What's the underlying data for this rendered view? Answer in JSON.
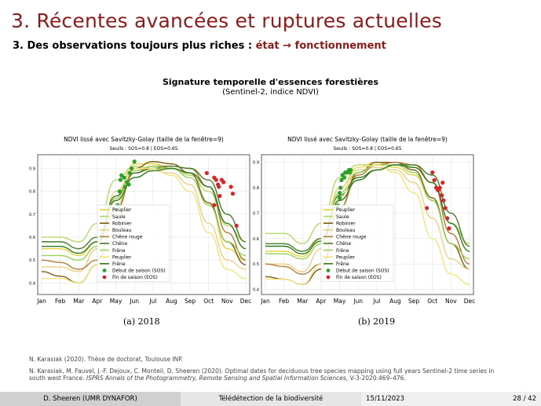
{
  "slide": {
    "title": "3. Récentes avancées et ruptures actuelles",
    "subtitle_prefix": "3. Des observations toujours plus riches : ",
    "subtitle_highlight": "état → fonctionnement",
    "figure_title": "Signature temporelle d'essences forestières",
    "figure_subtitle": "(Sentinel-2, indice NDVI)"
  },
  "colors": {
    "title": "#8B1A1A",
    "sos": "#2ca02c",
    "eos": "#d62728"
  },
  "chart_data": [
    {
      "type": "line",
      "panel": "a",
      "caption": "(a) 2018",
      "title": "NDVI lissé avec Savitzky-Golay (taille de la fenêtre=9)",
      "thresholds_label": "Seuils : SOS=0.8 | EOS=0.65",
      "categories": [
        "Jan",
        "Feb",
        "Mar",
        "Apr",
        "May",
        "Jun",
        "Jul",
        "Aug",
        "Sep",
        "Oct",
        "Nov",
        "Dec"
      ],
      "y_ticks": [
        "0.9",
        "0.8",
        "0.7",
        "0.6",
        "0.5",
        "0.4"
      ],
      "ylim": [
        0.35,
        0.96
      ],
      "grid": true,
      "legend_position": "center-right",
      "series": [
        {
          "name": "Peuplier",
          "color": "#e6d43a",
          "values": [
            0.55,
            0.55,
            0.52,
            0.58,
            0.78,
            0.92,
            0.92,
            0.9,
            0.88,
            0.75,
            0.55,
            0.5
          ]
        },
        {
          "name": "Saule",
          "color": "#b8d86b",
          "values": [
            0.6,
            0.6,
            0.58,
            0.66,
            0.85,
            0.91,
            0.9,
            0.9,
            0.87,
            0.8,
            0.65,
            0.58
          ]
        },
        {
          "name": "Robinier",
          "color": "#7a5b14",
          "values": [
            0.45,
            0.43,
            0.4,
            0.48,
            0.72,
            0.9,
            0.93,
            0.92,
            0.88,
            0.75,
            0.58,
            0.48
          ]
        },
        {
          "name": "Bouleau",
          "color": "#e8cf8b",
          "values": [
            0.47,
            0.47,
            0.45,
            0.55,
            0.8,
            0.9,
            0.89,
            0.88,
            0.83,
            0.66,
            0.5,
            0.46
          ]
        },
        {
          "name": "Chêne rouge",
          "color": "#b07a3a",
          "values": [
            0.5,
            0.49,
            0.46,
            0.5,
            0.72,
            0.88,
            0.91,
            0.91,
            0.9,
            0.82,
            0.62,
            0.5
          ]
        },
        {
          "name": "Chêne",
          "color": "#4a7a2a",
          "values": [
            0.58,
            0.58,
            0.55,
            0.6,
            0.78,
            0.88,
            0.9,
            0.91,
            0.9,
            0.85,
            0.7,
            0.58
          ]
        },
        {
          "name": "Frêne",
          "color": "#9bd15a",
          "values": [
            0.52,
            0.52,
            0.5,
            0.56,
            0.77,
            0.89,
            0.91,
            0.9,
            0.86,
            0.74,
            0.58,
            0.52
          ]
        },
        {
          "name": "Peuplier",
          "color": "#f0e47a",
          "values": [
            0.42,
            0.42,
            0.4,
            0.48,
            0.74,
            0.9,
            0.9,
            0.87,
            0.8,
            0.62,
            0.46,
            0.42
          ]
        },
        {
          "name": "Frêne",
          "color": "#2f7a1a",
          "values": [
            0.56,
            0.56,
            0.53,
            0.58,
            0.76,
            0.86,
            0.89,
            0.9,
            0.88,
            0.82,
            0.66,
            0.55
          ]
        }
      ],
      "sos_label": "Début de saison (SOS)",
      "eos_label": "Fin de saison (EOS)",
      "sos_points": [
        [
          4.0,
          0.72
        ],
        [
          4.1,
          0.74
        ],
        [
          4.2,
          0.8
        ],
        [
          4.25,
          0.85
        ],
        [
          4.3,
          0.87
        ],
        [
          4.45,
          0.86
        ],
        [
          4.5,
          0.82
        ],
        [
          4.6,
          0.84
        ],
        [
          4.7,
          0.83
        ],
        [
          4.75,
          0.88
        ],
        [
          4.85,
          0.9
        ],
        [
          5.0,
          0.93
        ]
      ],
      "eos_points": [
        [
          8.9,
          0.88
        ],
        [
          9.3,
          0.86
        ],
        [
          9.4,
          0.85
        ],
        [
          9.5,
          0.83
        ],
        [
          9.55,
          0.82
        ],
        [
          9.6,
          0.78
        ],
        [
          9.7,
          0.85
        ],
        [
          9.8,
          0.84
        ],
        [
          9.3,
          0.74
        ],
        [
          10.2,
          0.82
        ],
        [
          10.3,
          0.79
        ],
        [
          10.5,
          0.65
        ]
      ]
    },
    {
      "type": "line",
      "panel": "b",
      "caption": "(b) 2019",
      "title": "NDVI lissé avec Savitzky-Golay (taille de la fenêtre=9)",
      "thresholds_label": "Seuils : SOS=0.8 | EOS=0.65",
      "categories": [
        "Jan",
        "Feb",
        "Mar",
        "Apr",
        "May",
        "Jun",
        "Jul",
        "Aug",
        "Sep",
        "Oct",
        "Nov",
        "Dec"
      ],
      "y_ticks": [
        "0.9",
        "0.8",
        "0.7",
        "0.6",
        "0.5",
        "0.4"
      ],
      "ylim": [
        0.38,
        0.93
      ],
      "grid": true,
      "legend_position": "center-right",
      "series": [
        {
          "name": "Peuplier",
          "color": "#e6d43a",
          "values": [
            0.55,
            0.55,
            0.53,
            0.6,
            0.8,
            0.88,
            0.9,
            0.88,
            0.85,
            0.75,
            0.58,
            0.52
          ]
        },
        {
          "name": "Saule",
          "color": "#b8d86b",
          "values": [
            0.62,
            0.62,
            0.58,
            0.66,
            0.84,
            0.89,
            0.89,
            0.9,
            0.88,
            0.82,
            0.66,
            0.58
          ]
        },
        {
          "name": "Robinier",
          "color": "#7a5b14",
          "values": [
            0.45,
            0.44,
            0.42,
            0.48,
            0.72,
            0.86,
            0.9,
            0.9,
            0.87,
            0.76,
            0.58,
            0.48
          ]
        },
        {
          "name": "Bouleau",
          "color": "#e8cf8b",
          "values": [
            0.5,
            0.5,
            0.47,
            0.56,
            0.8,
            0.87,
            0.88,
            0.87,
            0.82,
            0.68,
            0.52,
            0.48
          ]
        },
        {
          "name": "Chêne rouge",
          "color": "#b07a3a",
          "values": [
            0.5,
            0.49,
            0.46,
            0.5,
            0.72,
            0.85,
            0.89,
            0.9,
            0.89,
            0.82,
            0.62,
            0.5
          ]
        },
        {
          "name": "Chêne",
          "color": "#4a7a2a",
          "values": [
            0.58,
            0.58,
            0.55,
            0.6,
            0.77,
            0.84,
            0.87,
            0.89,
            0.89,
            0.85,
            0.7,
            0.57
          ]
        },
        {
          "name": "Frêne",
          "color": "#9bd15a",
          "values": [
            0.54,
            0.54,
            0.52,
            0.58,
            0.78,
            0.86,
            0.89,
            0.89,
            0.86,
            0.75,
            0.58,
            0.52
          ]
        },
        {
          "name": "Peuplier",
          "color": "#f0e47a",
          "values": [
            0.44,
            0.44,
            0.42,
            0.5,
            0.76,
            0.88,
            0.89,
            0.86,
            0.78,
            0.6,
            0.46,
            0.42
          ]
        },
        {
          "name": "Frêne",
          "color": "#2f7a1a",
          "values": [
            0.57,
            0.57,
            0.54,
            0.59,
            0.75,
            0.83,
            0.87,
            0.89,
            0.88,
            0.82,
            0.66,
            0.55
          ]
        }
      ],
      "sos_label": "Début de saison (SOS)",
      "eos_label": "Fin de saison (EOS)",
      "sos_points": [
        [
          3.9,
          0.73
        ],
        [
          4.0,
          0.76
        ],
        [
          4.05,
          0.8
        ],
        [
          4.1,
          0.83
        ],
        [
          4.15,
          0.85
        ],
        [
          4.25,
          0.84
        ],
        [
          4.3,
          0.86
        ],
        [
          4.4,
          0.86
        ],
        [
          4.5,
          0.87
        ],
        [
          4.55,
          0.86
        ],
        [
          4.6,
          0.87
        ],
        [
          4.0,
          0.78
        ]
      ],
      "eos_points": [
        [
          9.0,
          0.86
        ],
        [
          9.1,
          0.83
        ],
        [
          9.2,
          0.8
        ],
        [
          9.3,
          0.79
        ],
        [
          9.4,
          0.8
        ],
        [
          9.5,
          0.77
        ],
        [
          9.6,
          0.75
        ],
        [
          9.7,
          0.72
        ],
        [
          9.8,
          0.68
        ],
        [
          9.9,
          0.64
        ],
        [
          8.7,
          0.72
        ],
        [
          9.55,
          0.82
        ]
      ]
    }
  ],
  "references": {
    "ref1": "N. Karasiak (2020). Thèse de doctorat, Toulouse INP.",
    "ref2_plain": "N. Karasiak, M. Fauvel, J.-F. Dejoux, C. Monteil, D. Sheeren (2020). Optimal dates for deciduous tree species mapping using full years Sentinel-2 time series in south west France. ",
    "ref2_italic": "ISPRS Annals of the Photogrammetry, Remote Sensing and Spatial Information Sciences",
    "ref2_end": ", V-3-2020:469–476."
  },
  "footer": {
    "author": "D. Sheeren (UMR DYNAFOR)",
    "course": "Télédétection de la biodiversité",
    "date": "15/11/2023",
    "page": "28 / 42"
  }
}
